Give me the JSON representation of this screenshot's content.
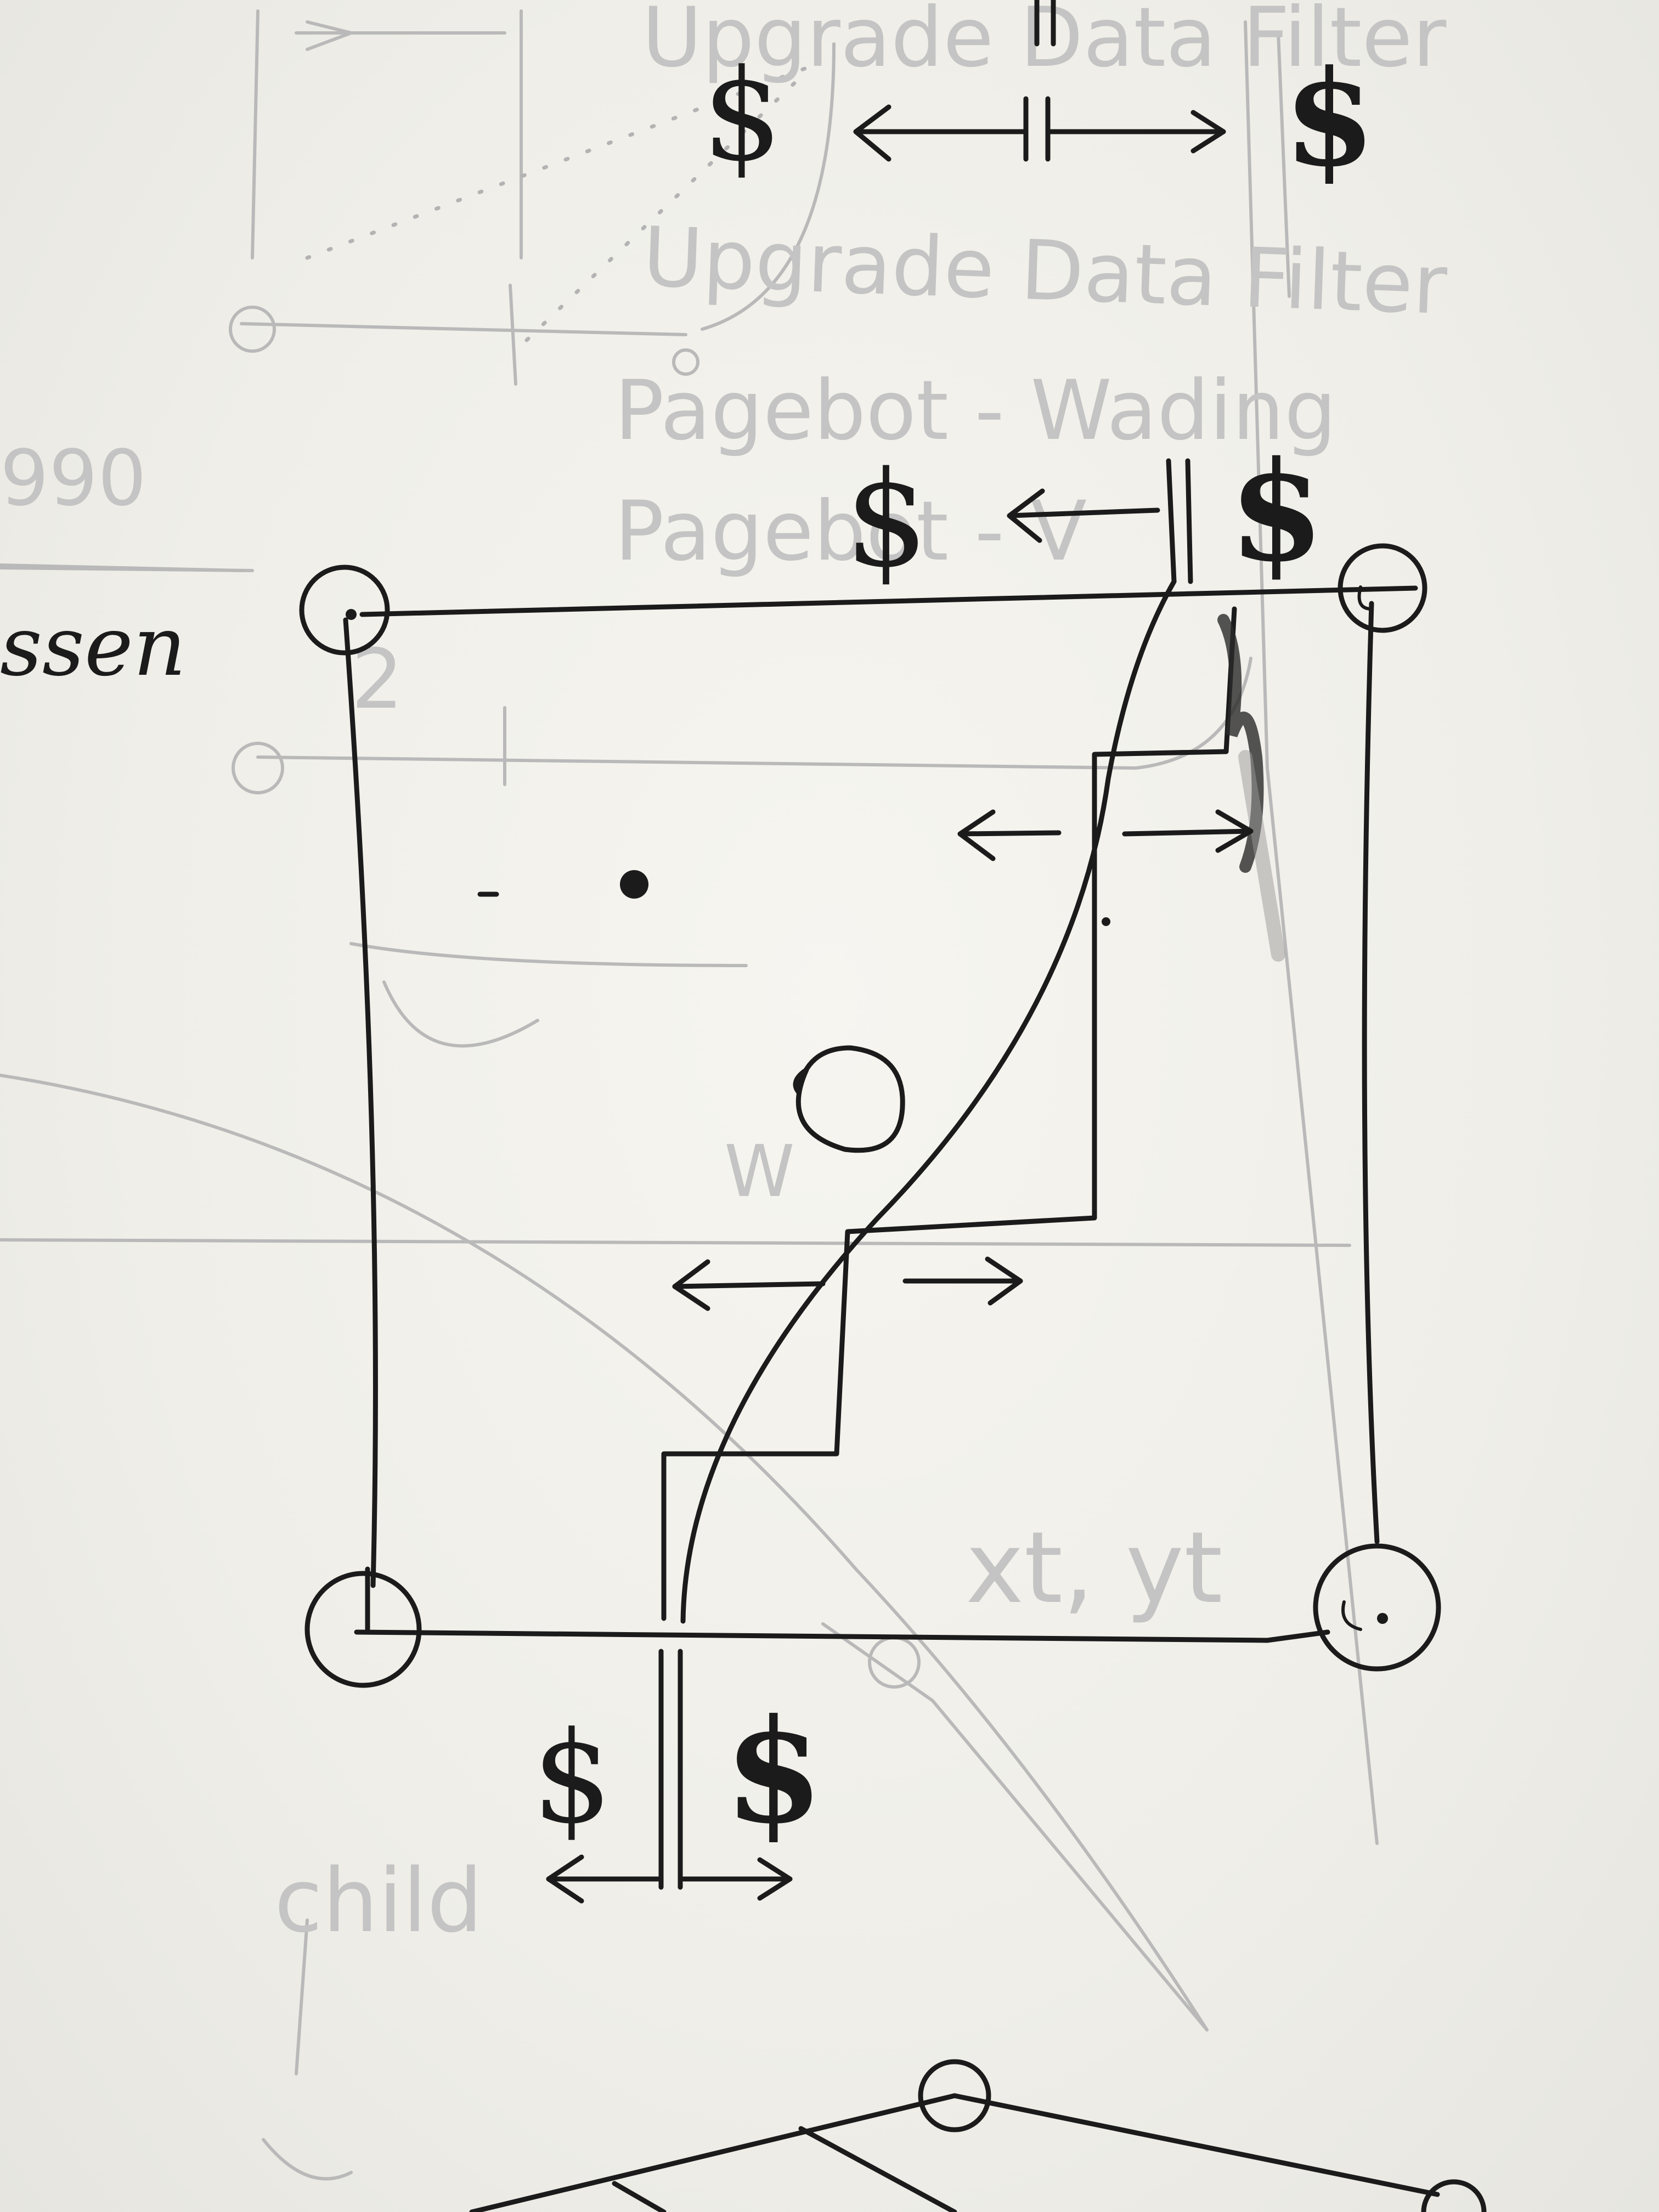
{
  "labels": {
    "dollar_top_left": "$",
    "dollar_top_right": "$",
    "dollar_mid_left": "$",
    "dollar_mid_right": "$",
    "dollar_bottom_left": "$",
    "dollar_bottom_right": "$",
    "edge_note_left": "ssen"
  },
  "faint_background": {
    "word_1": "Upgrade Data Filter",
    "word_2": "Pagebot - Wading",
    "word_3": "Pagebot - V",
    "word_4": "W",
    "word_5": "xt, yt",
    "word_6": "child",
    "word_7": "990",
    "word_8": "2"
  }
}
